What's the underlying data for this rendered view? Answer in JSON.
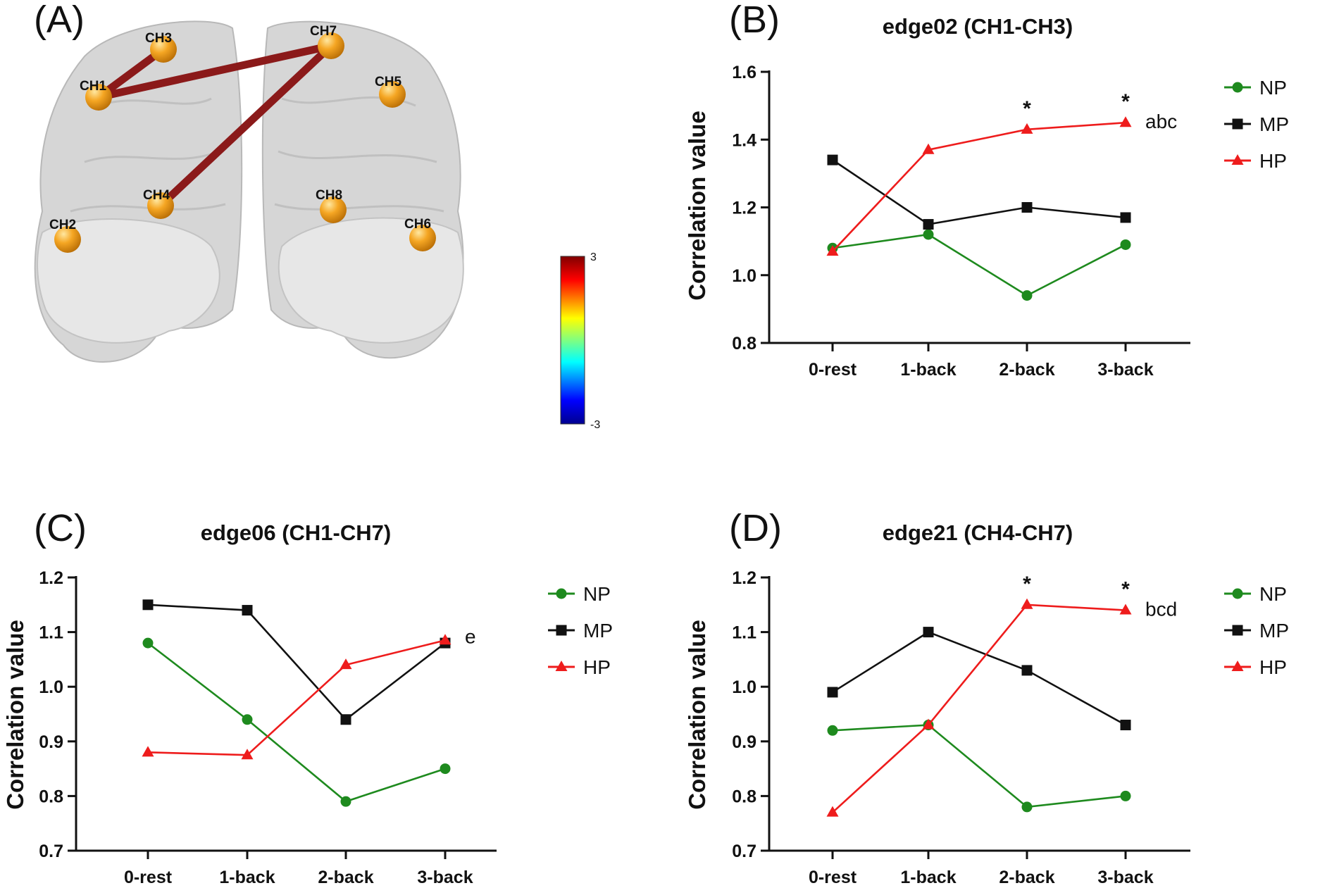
{
  "colors": {
    "NP": "#1e8a1e",
    "MP": "#111111",
    "HP": "#ee1c1c",
    "edge": "#8b1a1a",
    "node": "#f5a623"
  },
  "panel_a": {
    "letter": "(A)",
    "nodes": [
      "CH1",
      "CH2",
      "CH3",
      "CH4",
      "CH5",
      "CH6",
      "CH7",
      "CH8"
    ],
    "edges": [
      [
        "CH1",
        "CH3"
      ],
      [
        "CH1",
        "CH7"
      ],
      [
        "CH4",
        "CH7"
      ]
    ],
    "colorbar": {
      "max": "3",
      "min": "-3"
    }
  },
  "chart_data": [
    {
      "panel": "(B)",
      "type": "line",
      "title": "edge02 (CH1-CH3)",
      "categories": [
        "0-rest",
        "1-back",
        "2-back",
        "3-back"
      ],
      "ylabel": "Correlation value",
      "ylim": [
        0.8,
        1.6
      ],
      "yticks": [
        "0.8",
        "1.0",
        "1.2",
        "1.4",
        "1.6"
      ],
      "series": [
        {
          "name": "NP",
          "marker": "circle",
          "values": [
            1.08,
            1.12,
            0.94,
            1.09
          ]
        },
        {
          "name": "MP",
          "marker": "square",
          "values": [
            1.34,
            1.15,
            1.2,
            1.17
          ]
        },
        {
          "name": "HP",
          "marker": "triangle",
          "values": [
            1.07,
            1.37,
            1.43,
            1.45
          ]
        }
      ],
      "stars": [
        {
          "category": "2-back",
          "text": "*"
        },
        {
          "category": "3-back",
          "text": "*"
        }
      ],
      "annotation": {
        "text": "abc",
        "category": "3-back",
        "y": 1.45
      },
      "legend": [
        "NP",
        "MP",
        "HP"
      ]
    },
    {
      "panel": "(C)",
      "type": "line",
      "title": "edge06 (CH1-CH7)",
      "categories": [
        "0-rest",
        "1-back",
        "2-back",
        "3-back"
      ],
      "ylabel": "Correlation value",
      "ylim": [
        0.7,
        1.2
      ],
      "yticks": [
        "0.7",
        "0.8",
        "0.9",
        "1.0",
        "1.1",
        "1.2"
      ],
      "series": [
        {
          "name": "NP",
          "marker": "circle",
          "values": [
            1.08,
            0.94,
            0.79,
            0.85
          ]
        },
        {
          "name": "MP",
          "marker": "square",
          "values": [
            1.15,
            1.14,
            0.94,
            1.08
          ]
        },
        {
          "name": "HP",
          "marker": "triangle",
          "values": [
            0.88,
            0.875,
            1.04,
            1.085
          ]
        }
      ],
      "stars": [],
      "annotation": {
        "text": "e",
        "category": "3-back",
        "y": 1.09
      },
      "legend": [
        "NP",
        "MP",
        "HP"
      ]
    },
    {
      "panel": "(D)",
      "type": "line",
      "title": "edge21 (CH4-CH7)",
      "categories": [
        "0-rest",
        "1-back",
        "2-back",
        "3-back"
      ],
      "ylabel": "Correlation value",
      "ylim": [
        0.7,
        1.2
      ],
      "yticks": [
        "0.7",
        "0.8",
        "0.9",
        "1.0",
        "1.1",
        "1.2"
      ],
      "series": [
        {
          "name": "NP",
          "marker": "circle",
          "values": [
            0.92,
            0.93,
            0.78,
            0.8
          ]
        },
        {
          "name": "MP",
          "marker": "square",
          "values": [
            0.99,
            1.1,
            1.03,
            0.93
          ]
        },
        {
          "name": "HP",
          "marker": "triangle",
          "values": [
            0.77,
            0.93,
            1.15,
            1.14
          ]
        }
      ],
      "stars": [
        {
          "category": "2-back",
          "text": "*"
        },
        {
          "category": "3-back",
          "text": "*"
        }
      ],
      "annotation": {
        "text": "bcd",
        "category": "3-back",
        "y": 1.14
      },
      "legend": [
        "NP",
        "MP",
        "HP"
      ]
    }
  ]
}
